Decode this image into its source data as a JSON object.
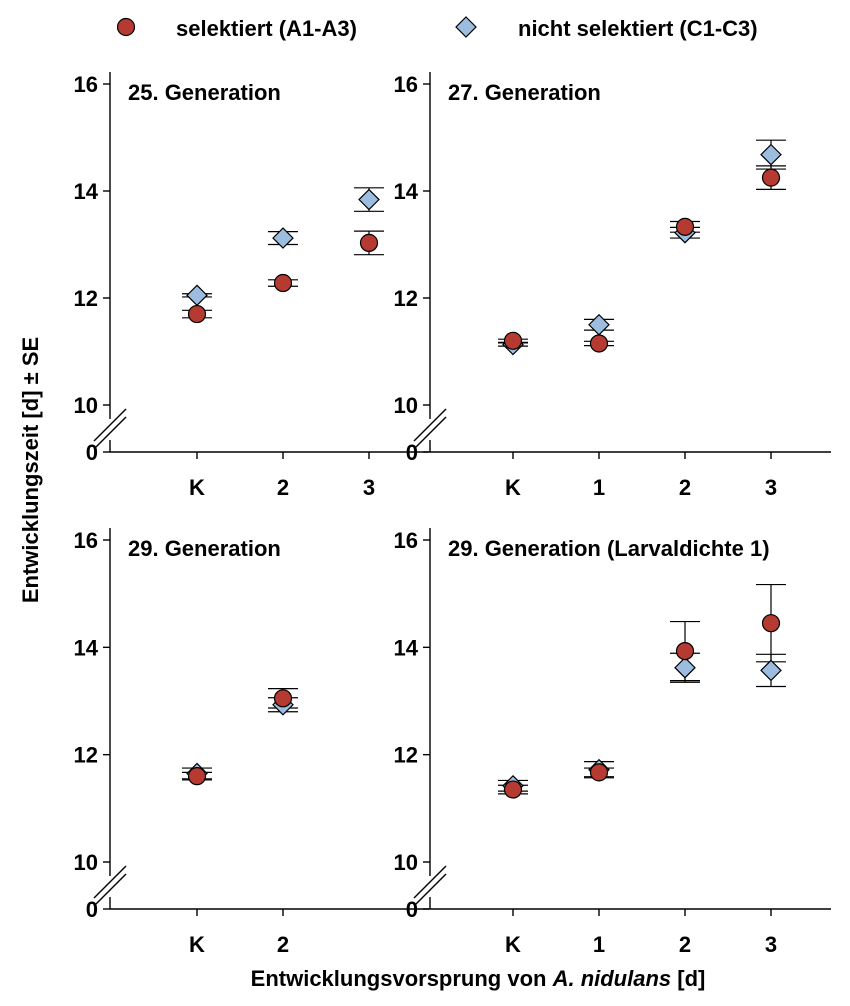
{
  "colors": {
    "selected": "#b53a32",
    "unselected": "#9cbde0",
    "axis": "#000000"
  },
  "chart_data": {
    "type": "scatter",
    "legend": {
      "placement": "top",
      "selected_label": "selektiert (A1-A3)",
      "unselected_label": "nicht selektiert (C1-C3)",
      "selected_marker": "circle",
      "unselected_marker": "diamond"
    },
    "ylabel": "Entwicklungszeit [d] ± SE",
    "xlabel_pre": "Entwicklungsvorsprung von ",
    "xlabel_species": "A. nidulans",
    "xlabel_post": " [d]",
    "ylim": [
      10,
      16
    ],
    "y_break_label": "0",
    "yticks": [
      "10",
      "12",
      "14",
      "16"
    ],
    "panels": [
      {
        "title": "25. Generation",
        "categories": [
          "K",
          "2",
          "3"
        ],
        "series": [
          {
            "key": "selected",
            "name": "selektiert (A1-A3)",
            "values": [
              11.7,
              12.28,
              13.03
            ],
            "se": [
              0.07,
              0.06,
              0.22
            ]
          },
          {
            "key": "unselected",
            "name": "nicht selektiert (C1-C3)",
            "values": [
              12.05,
              13.12,
              13.84
            ],
            "se": [
              0.03,
              0.12,
              0.22
            ]
          }
        ]
      },
      {
        "title": "27. Generation",
        "categories": [
          "K",
          "1",
          "2",
          "3"
        ],
        "series": [
          {
            "key": "selected",
            "name": "selektiert (A1-A3)",
            "values": [
              11.2,
              11.15,
              13.33,
              14.25
            ],
            "se": [
              0.03,
              0.04,
              0.1,
              0.22
            ]
          },
          {
            "key": "unselected",
            "name": "nicht selektiert (C1-C3)",
            "values": [
              11.13,
              11.5,
              13.22,
              14.68
            ],
            "se": [
              0.03,
              0.1,
              0.1,
              0.27
            ]
          }
        ]
      },
      {
        "title": "29. Generation",
        "categories": [
          "K",
          "2"
        ],
        "series": [
          {
            "key": "selected",
            "name": "selektiert (A1-A3)",
            "values": [
              11.6,
              13.05
            ],
            "se": [
              0.07,
              0.18
            ]
          },
          {
            "key": "unselected",
            "name": "nicht selektiert (C1-C3)",
            "values": [
              11.65,
              12.93
            ],
            "se": [
              0.1,
              0.13
            ]
          }
        ]
      },
      {
        "title": "29. Generation (Larvaldichte 1)",
        "categories": [
          "K",
          "1",
          "2",
          "3"
        ],
        "series": [
          {
            "key": "selected",
            "name": "selektiert (A1-A3)",
            "values": [
              11.35,
              11.67,
              13.93,
              14.45
            ],
            "se": [
              0.08,
              0.08,
              0.55,
              0.72
            ]
          },
          {
            "key": "unselected",
            "name": "nicht selektiert (C1-C3)",
            "values": [
              11.42,
              11.72,
              13.62,
              13.57
            ],
            "se": [
              0.1,
              0.15,
              0.27,
              0.3
            ]
          }
        ]
      }
    ]
  }
}
